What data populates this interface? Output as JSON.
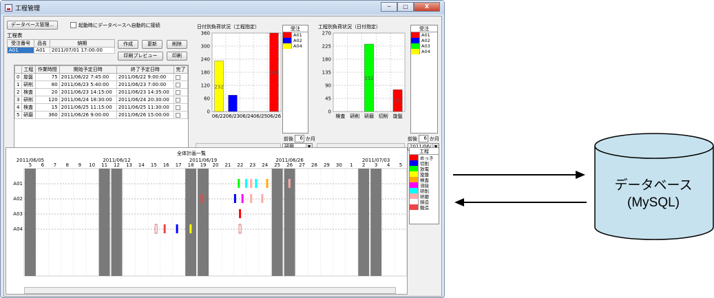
{
  "window": {
    "title": "工程管理",
    "controls": [
      "─",
      "□",
      "X"
    ]
  },
  "toolbar": {
    "db_button": "データベース管理...",
    "auto_connect": "起動時にデータベースへ自動的に接続"
  },
  "order_section": {
    "label": "工程表",
    "headers": [
      "受注番号",
      "品名",
      "納期"
    ],
    "row": [
      "A01",
      "A01",
      "2011/07/01 17:00:00"
    ],
    "buttons": {
      "create": "作成",
      "update": "更新",
      "delete": "削除",
      "print_preview": "印刷プレビュー",
      "print": "印刷"
    }
  },
  "process_table": {
    "headers": [
      "",
      "工程",
      "作業時間",
      "開始予定日時",
      "終了予定日時",
      "完了"
    ],
    "rows": [
      [
        "0",
        "旋盤",
        "75",
        "2011/06/22 7:45:00",
        "2011/06/22 9:00:00"
      ],
      [
        "1",
        "研削",
        "80",
        "2011/06/23 5:40:00",
        "2011/06/23 7:00:00"
      ],
      [
        "2",
        "検査",
        "20",
        "2011/06/23 14:15:00",
        "2011/06/23 14:35:00"
      ],
      [
        "3",
        "研削",
        "120",
        "2011/06/24 18:30:00",
        "2011/06/24 20:30:00"
      ],
      [
        "4",
        "検査",
        "15",
        "2011/06/25 11:15:00",
        "2011/06/25 11:30:00"
      ],
      [
        "5",
        "研磨",
        "360",
        "2011/06/26 9:00:00",
        "2011/06/26 15:00:00"
      ]
    ]
  },
  "chart_data": [
    {
      "type": "bar",
      "title": "日付別負荷状況（工程指定）",
      "categories": [
        "06/22",
        "06/23",
        "06/24",
        "06/25",
        "06/26"
      ],
      "series": [
        {
          "name": "A01",
          "values": [
            0,
            0,
            0,
            0,
            360
          ]
        },
        {
          "name": "A02",
          "values": [
            0,
            75,
            0,
            0,
            0
          ]
        },
        {
          "name": "A04",
          "values": [
            232,
            0,
            0,
            0,
            0
          ]
        }
      ],
      "value_labels": [
        {
          "category": "06/22",
          "text": "232"
        },
        {
          "category": "06/26",
          "text": "360"
        }
      ],
      "ylim": [
        0,
        360
      ],
      "yticks": [
        "0",
        "60",
        "120",
        "180",
        "240",
        "300",
        "360"
      ],
      "legend_title": "受注",
      "legend_position": "right",
      "grid": true
    },
    {
      "type": "bar",
      "title": "工程別負荷状況（日付指定）",
      "categories": [
        "検査",
        "研削",
        "研磨",
        "切削",
        "旋盤"
      ],
      "series": [
        {
          "name": "A01",
          "values": [
            0,
            0,
            0,
            0,
            75
          ]
        },
        {
          "name": "A02",
          "values": [
            0,
            0,
            0,
            0,
            0
          ]
        },
        {
          "name": "A03",
          "values": [
            0,
            0,
            232,
            0,
            0
          ]
        },
        {
          "name": "A04",
          "values": [
            0,
            0,
            0,
            0,
            0
          ]
        }
      ],
      "value_labels": [
        {
          "category": "研磨",
          "text": "232"
        },
        {
          "category": "旋盤",
          "text": "75"
        }
      ],
      "ylim": [
        0,
        270
      ],
      "yticks": [
        "0",
        "45",
        "90",
        "135",
        "180",
        "225",
        "270"
      ],
      "legend_title": "受注",
      "legend_position": "right",
      "grid": true
    }
  ],
  "chart1_controls": {
    "months_label": "前後",
    "months_value": "6",
    "months_unit": "か月",
    "process_select": "研磨"
  },
  "chart2_controls": {
    "months_label": "前後",
    "months_value": "6",
    "months_unit": "か月",
    "date_select": "2011/06/..."
  },
  "series_colors": {
    "A01": "#ff0000",
    "A02": "#0000ff",
    "A03": "#00ff00",
    "A04": "#ffff00"
  },
  "gantt": {
    "title": "全体計画一覧",
    "week_labels": [
      "2011/06/05",
      "2011/06/12",
      "2011/06/19",
      "2011/06/26",
      "2011/07/03"
    ],
    "days": [
      "5",
      "6",
      "7",
      "8",
      "9",
      "10",
      "11",
      "12",
      "13",
      "14",
      "15",
      "16",
      "17",
      "18",
      "19",
      "20",
      "21",
      "22",
      "23",
      "24",
      "25",
      "26",
      "27",
      "28",
      "29",
      "30",
      "1",
      "2",
      "3",
      "4",
      "5"
    ],
    "rows": [
      "A01",
      "A02",
      "A03",
      "A04"
    ],
    "legend_title": "工程",
    "legend": [
      {
        "name": "めっき",
        "color": "#ff0000"
      },
      {
        "name": "切削",
        "color": "#0000ff"
      },
      {
        "name": "放電",
        "color": "#00ff00"
      },
      {
        "name": "旋盤",
        "color": "#ffff00"
      },
      {
        "name": "検査",
        "color": "#ffaa00"
      },
      {
        "name": "溶接",
        "color": "#ff00ff"
      },
      {
        "name": "研削",
        "color": "#00ffff"
      },
      {
        "name": "研磨",
        "color": "#ffaaaa"
      },
      {
        "name": "鋳造",
        "color": "#ffffff"
      },
      {
        "name": "鍛造",
        "color": "#ee4444"
      }
    ]
  },
  "db_diagram": {
    "line1": "データベース",
    "line2": "(MySQL)",
    "cylinder_color": "#c6e2ee"
  }
}
